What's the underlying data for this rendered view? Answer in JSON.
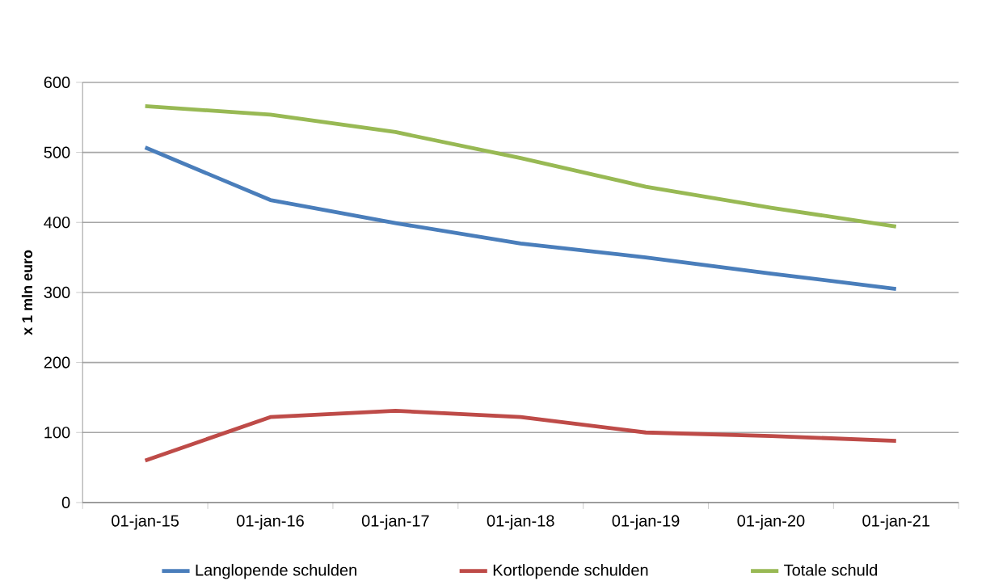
{
  "chart_data": {
    "type": "line",
    "ylabel": "x 1 mln euro",
    "categories": [
      "01-jan-15",
      "01-jan-16",
      "01-jan-17",
      "01-jan-18",
      "01-jan-19",
      "01-jan-20",
      "01-jan-21"
    ],
    "series": [
      {
        "name": "Langlopende schulden",
        "color": "#4a7ebb",
        "values": [
          507,
          432,
          399,
          370,
          350,
          327,
          305
        ]
      },
      {
        "name": "Kortlopende schulden",
        "color": "#be4b48",
        "values": [
          60,
          122,
          131,
          122,
          100,
          95,
          88
        ]
      },
      {
        "name": "Totale schuld",
        "color": "#98b954",
        "values": [
          566,
          554,
          529,
          492,
          451,
          421,
          394
        ]
      }
    ],
    "ylim": [
      0,
      600
    ],
    "yticks": [
      0,
      100,
      200,
      300,
      400,
      500,
      600
    ],
    "grid": "y",
    "legend": "bottom"
  }
}
